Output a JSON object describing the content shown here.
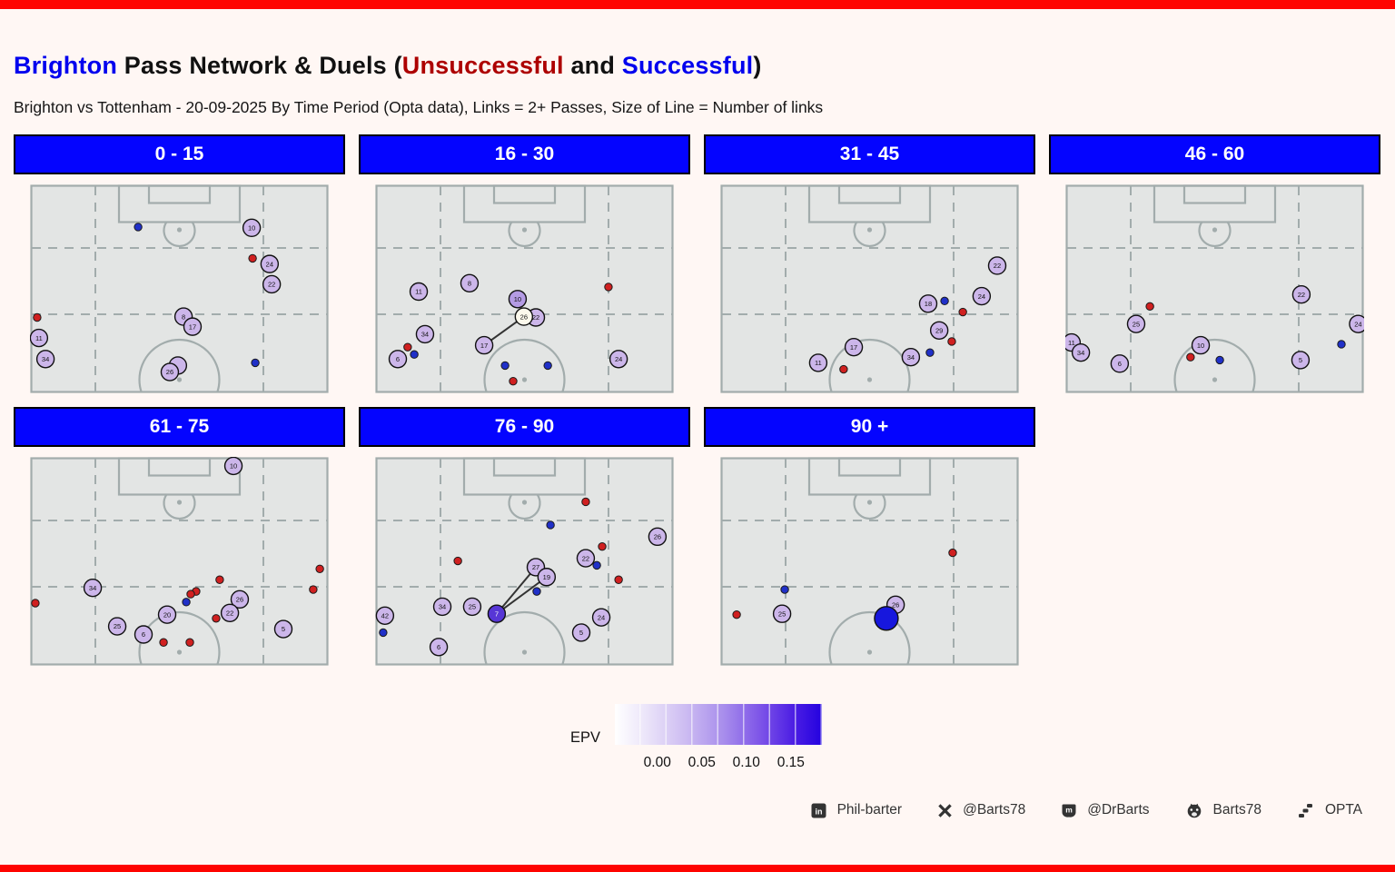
{
  "title": {
    "team": "Brighton",
    "main": " Pass Network & Duels (",
    "unsuccessful": "Unsuccessful",
    "and": " and ",
    "successful": "Successful",
    "close": ")"
  },
  "subtitle": "Brighton vs Tottenham - 20-09-2025 By Time Period (Opta data), Links = 2+ Passes, Size of Line = Number of links",
  "colors": {
    "team_blue": "#0000ee",
    "unsuccessful_red": "#ad0000",
    "successful_blue": "#0000ee",
    "header_bg": "#0404ff",
    "page_bg": "#fff7f4",
    "border_red": "#fe0400",
    "pitch_fill": "#e3e5e4",
    "pitch_line": "#a2acac",
    "player_default": "#ccb6ea",
    "duel_unsuccessful": "#d02020",
    "duel_successful": "#2030c8"
  },
  "chart_data": {
    "type": "scatter",
    "description": "Faceted vertical half-pitch maps by 15-minute period. Numbered circles = Brighton player average positions coloured by EPV; small red dots = unsuccessful duels; small blue dots = successful duels; lines = pass links of 2+ passes (line size = number of links).",
    "epv_legend": {
      "label": "EPV",
      "ticks": [
        "0.00",
        "0.05",
        "0.10",
        "0.15"
      ],
      "tick_pos_pct": [
        20.5,
        42.0,
        63.5,
        85.0
      ],
      "gradient": [
        "#ffffff",
        "#2402df"
      ]
    },
    "facets": [
      {
        "label": "0 - 15",
        "players": [
          {
            "num": "10",
            "x": 74.2,
            "y": 20.8
          },
          {
            "num": "24",
            "x": 80.2,
            "y": 38.1
          },
          {
            "num": "22",
            "x": 80.9,
            "y": 47.8
          },
          {
            "num": "8",
            "x": 51.4,
            "y": 63.3
          },
          {
            "num": "17",
            "x": 54.4,
            "y": 68.1
          },
          {
            "num": "11",
            "x": 3.0,
            "y": 73.5
          },
          {
            "num": "34",
            "x": 5.2,
            "y": 83.6
          },
          {
            "num": "",
            "x": 49.5,
            "y": 86.7
          },
          {
            "num": "26",
            "x": 46.8,
            "y": 89.8
          }
        ],
        "links": [],
        "duels": [
          {
            "x": 36.2,
            "y": 20.4,
            "result": "successful"
          },
          {
            "x": 74.5,
            "y": 35.4,
            "result": "unsuccessful"
          },
          {
            "x": 2.4,
            "y": 63.7,
            "result": "unsuccessful"
          },
          {
            "x": 75.4,
            "y": 85.4,
            "result": "successful"
          }
        ]
      },
      {
        "label": "16 - 30",
        "players": [
          {
            "num": "8",
            "x": 31.6,
            "y": 47.3
          },
          {
            "num": "11",
            "x": 14.6,
            "y": 51.3
          },
          {
            "num": "10",
            "x": 47.7,
            "y": 54.9,
            "fill": "#b49be4"
          },
          {
            "num": "22",
            "x": 53.8,
            "y": 63.7
          },
          {
            "num": "26",
            "x": 49.8,
            "y": 63.3,
            "fill": "#fcf9ec"
          },
          {
            "num": "34",
            "x": 16.7,
            "y": 71.7
          },
          {
            "num": "17",
            "x": 36.5,
            "y": 77.0
          },
          {
            "num": "6",
            "x": 7.6,
            "y": 83.6
          },
          {
            "num": "24",
            "x": 81.5,
            "y": 83.6
          }
        ],
        "links": [
          [
            "17",
            "26"
          ]
        ],
        "duels": [
          {
            "x": 78.1,
            "y": 49.1,
            "result": "unsuccessful"
          },
          {
            "x": 10.9,
            "y": 77.9,
            "result": "unsuccessful"
          },
          {
            "x": 13.1,
            "y": 81.4,
            "result": "successful"
          },
          {
            "x": 43.5,
            "y": 86.7,
            "result": "successful"
          },
          {
            "x": 57.8,
            "y": 86.7,
            "result": "successful"
          },
          {
            "x": 46.2,
            "y": 94.2,
            "result": "unsuccessful"
          }
        ]
      },
      {
        "label": "31 - 45",
        "players": [
          {
            "num": "22",
            "x": 92.7,
            "y": 38.9
          },
          {
            "num": "24",
            "x": 87.5,
            "y": 53.5
          },
          {
            "num": "18",
            "x": 69.6,
            "y": 57.1
          },
          {
            "num": "29",
            "x": 73.3,
            "y": 69.9
          },
          {
            "num": "17",
            "x": 44.7,
            "y": 77.9
          },
          {
            "num": "34",
            "x": 63.8,
            "y": 82.7
          },
          {
            "num": "11",
            "x": 32.8,
            "y": 85.4
          }
        ],
        "links": [],
        "duels": [
          {
            "x": 75.1,
            "y": 55.8,
            "result": "successful"
          },
          {
            "x": 81.2,
            "y": 61.1,
            "result": "unsuccessful"
          },
          {
            "x": 77.5,
            "y": 75.2,
            "result": "unsuccessful"
          },
          {
            "x": 70.2,
            "y": 80.5,
            "result": "successful"
          },
          {
            "x": 41.3,
            "y": 88.5,
            "result": "unsuccessful"
          }
        ]
      },
      {
        "label": "46 - 60",
        "players": [
          {
            "num": "22",
            "x": 79.0,
            "y": 52.7
          },
          {
            "num": "25",
            "x": 23.7,
            "y": 66.8
          },
          {
            "num": "24",
            "x": 98.0,
            "y": 66.8
          },
          {
            "num": "11",
            "x": 2.1,
            "y": 75.7
          },
          {
            "num": "10",
            "x": 45.3,
            "y": 77.0
          },
          {
            "num": "34",
            "x": 5.2,
            "y": 80.5
          },
          {
            "num": "6",
            "x": 18.2,
            "y": 85.8
          },
          {
            "num": "5",
            "x": 78.7,
            "y": 84.1
          }
        ],
        "links": [],
        "duels": [
          {
            "x": 28.3,
            "y": 58.4,
            "result": "unsuccessful"
          },
          {
            "x": 92.4,
            "y": 76.5,
            "result": "successful"
          },
          {
            "x": 41.9,
            "y": 82.7,
            "result": "unsuccessful"
          },
          {
            "x": 51.7,
            "y": 84.1,
            "result": "successful"
          }
        ]
      },
      {
        "label": "61 - 75",
        "players": [
          {
            "num": "10",
            "x": 68.1,
            "y": 4.3
          },
          {
            "num": "34",
            "x": 21.0,
            "y": 62.7
          },
          {
            "num": "26",
            "x": 70.2,
            "y": 68.2
          },
          {
            "num": "22",
            "x": 66.9,
            "y": 74.7
          },
          {
            "num": "20",
            "x": 45.9,
            "y": 75.5
          },
          {
            "num": "25",
            "x": 29.2,
            "y": 81.1
          },
          {
            "num": "6",
            "x": 38.0,
            "y": 85.0
          },
          {
            "num": "5",
            "x": 84.8,
            "y": 82.4
          }
        ],
        "links": [],
        "duels": [
          {
            "x": 97.0,
            "y": 53.6,
            "result": "unsuccessful"
          },
          {
            "x": 63.5,
            "y": 58.8,
            "result": "unsuccessful"
          },
          {
            "x": 94.8,
            "y": 63.5,
            "result": "unsuccessful"
          },
          {
            "x": 55.6,
            "y": 64.4,
            "result": "unsuccessful"
          },
          {
            "x": 53.8,
            "y": 65.7,
            "result": "unsuccessful"
          },
          {
            "x": 52.3,
            "y": 69.5,
            "result": "successful"
          },
          {
            "x": 1.8,
            "y": 70.0,
            "result": "unsuccessful"
          },
          {
            "x": 62.3,
            "y": 77.3,
            "result": "unsuccessful"
          },
          {
            "x": 44.7,
            "y": 88.8,
            "result": "unsuccessful"
          },
          {
            "x": 53.5,
            "y": 88.8,
            "result": "unsuccessful"
          }
        ]
      },
      {
        "label": "76 - 90",
        "players": [
          {
            "num": "26",
            "x": 94.5,
            "y": 38.2
          },
          {
            "num": "22",
            "x": 70.5,
            "y": 48.5
          },
          {
            "num": "27",
            "x": 53.8,
            "y": 52.8
          },
          {
            "num": "19",
            "x": 57.4,
            "y": 57.5
          },
          {
            "num": "34",
            "x": 22.5,
            "y": 71.7
          },
          {
            "num": "25",
            "x": 32.5,
            "y": 71.7
          },
          {
            "num": "42",
            "x": 3.3,
            "y": 76.0
          },
          {
            "num": "24",
            "x": 75.7,
            "y": 76.8
          },
          {
            "num": "5",
            "x": 69.0,
            "y": 84.1
          },
          {
            "num": "6",
            "x": 21.3,
            "y": 91.0
          },
          {
            "num": "7",
            "x": 40.7,
            "y": 75.1,
            "fill": "#5736d6",
            "text": "#ffffff"
          }
        ],
        "links": [
          [
            "27",
            "7"
          ],
          [
            "19",
            "7"
          ]
        ],
        "duels": [
          {
            "x": 70.5,
            "y": 21.5,
            "result": "unsuccessful"
          },
          {
            "x": 58.7,
            "y": 32.6,
            "result": "successful"
          },
          {
            "x": 76.0,
            "y": 42.9,
            "result": "unsuccessful"
          },
          {
            "x": 27.7,
            "y": 49.8,
            "result": "unsuccessful"
          },
          {
            "x": 74.2,
            "y": 51.9,
            "result": "successful"
          },
          {
            "x": 81.5,
            "y": 58.8,
            "result": "unsuccessful"
          },
          {
            "x": 54.1,
            "y": 64.4,
            "result": "successful"
          },
          {
            "x": 2.7,
            "y": 84.1,
            "result": "successful"
          }
        ]
      },
      {
        "label": "90 +",
        "players": [
          {
            "num": "26",
            "x": 58.7,
            "y": 70.8
          },
          {
            "num": "25",
            "x": 20.7,
            "y": 75.1
          },
          {
            "num": "",
            "x": 55.6,
            "y": 77.3,
            "fill": "#1717dd",
            "r": 13
          }
        ],
        "links": [],
        "duels": [
          {
            "x": 77.8,
            "y": 45.9,
            "result": "unsuccessful"
          },
          {
            "x": 21.6,
            "y": 63.5,
            "result": "successful"
          },
          {
            "x": 5.5,
            "y": 75.5,
            "result": "unsuccessful"
          }
        ]
      }
    ]
  },
  "footer": {
    "items": [
      {
        "icon": "linkedin-icon",
        "label": "Phil-barter"
      },
      {
        "icon": "x-icon",
        "label": "@Barts78"
      },
      {
        "icon": "mastodon-icon",
        "label": "@DrBarts"
      },
      {
        "icon": "github-icon",
        "label": "Barts78"
      },
      {
        "icon": "opta-icon",
        "label": "OPTA"
      }
    ]
  }
}
